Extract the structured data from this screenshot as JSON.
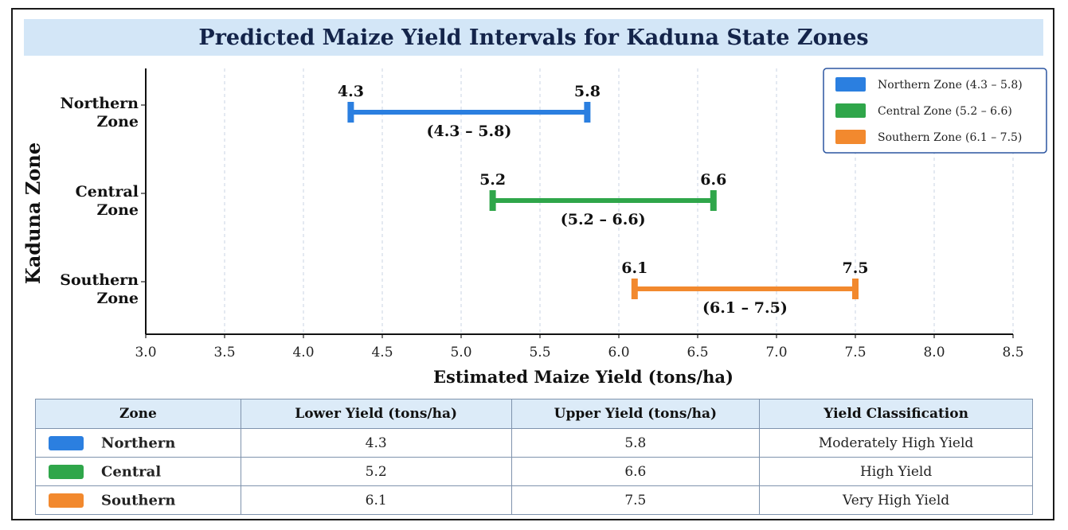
{
  "colors": {
    "Northern": "#2b7fe0",
    "Central": "#2fa64a",
    "Southern": "#f2892e"
  },
  "chart_data": {
    "type": "interval",
    "title": "Predicted Maize Yield Intervals for Kaduna State Zones",
    "xlabel": "Estimated Maize Yield (tons/ha)",
    "ylabel": "Kaduna Zone",
    "xlim": [
      3.0,
      8.5
    ],
    "xticks": [
      "3.0",
      "3.5",
      "4.0",
      "4.5",
      "5.0",
      "5.5",
      "6.0",
      "6.5",
      "7.0",
      "7.5",
      "8.0",
      "8.5"
    ],
    "grid": "vertical dashed",
    "legend_position": "top-right",
    "series": [
      {
        "zone_line1": "Northern",
        "zone_line2": "Zone",
        "key": "Northern",
        "lower": 4.3,
        "upper": 5.8,
        "lower_label": "4.3",
        "upper_label": "5.8",
        "range_label": "(4.3 – 5.8)",
        "legend": "Northern Zone (4.3 – 5.8)"
      },
      {
        "zone_line1": "Central",
        "zone_line2": "Zone",
        "key": "Central",
        "lower": 5.2,
        "upper": 6.6,
        "lower_label": "5.2",
        "upper_label": "6.6",
        "range_label": "(5.2 – 6.6)",
        "legend": "Central Zone (5.2 – 6.6)"
      },
      {
        "zone_line1": "Southern",
        "zone_line2": "Zone",
        "key": "Southern",
        "lower": 6.1,
        "upper": 7.5,
        "lower_label": "6.1",
        "upper_label": "7.5",
        "range_label": "(6.1 – 7.5)",
        "legend": "Southern Zone (6.1 – 7.5)"
      }
    ]
  },
  "table": {
    "headers": {
      "zone": "Zone",
      "lower": "Lower Yield (tons/ha)",
      "upper": "Upper Yield (tons/ha)",
      "classification": "Yield Classification"
    },
    "rows": [
      {
        "zone": "Northern",
        "lower": "4.3",
        "upper": "5.8",
        "classification": "Moderately High Yield"
      },
      {
        "zone": "Central",
        "lower": "5.2",
        "upper": "6.6",
        "classification": "High Yield"
      },
      {
        "zone": "Southern",
        "lower": "6.1",
        "upper": "7.5",
        "classification": "Very High Yield"
      }
    ]
  }
}
